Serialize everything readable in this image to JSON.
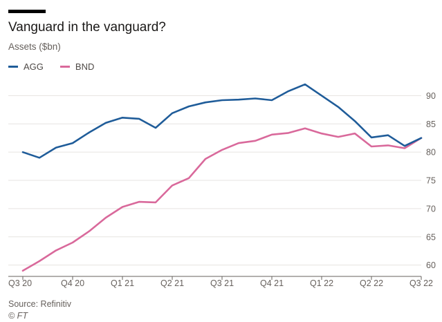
{
  "header": {
    "title": "Vanguard in the vanguard?",
    "subtitle": "Assets ($bn)"
  },
  "footer": {
    "source": "Source: Refinitiv",
    "credit": "© FT"
  },
  "colors": {
    "agg": "#1f5c99",
    "bnd": "#d9699b",
    "grid": "#e6e3e0",
    "axis": "#66605c"
  },
  "chart_data": {
    "type": "line",
    "title": "Vanguard in the vanguard?",
    "ylabel": "Assets ($bn)",
    "ylim": [
      58,
      92.5
    ],
    "yticks": [
      60,
      65,
      70,
      75,
      80,
      85,
      90
    ],
    "y_axis_side": "right",
    "grid": true,
    "legend": "top-left",
    "x_tick_labels": [
      "Q3 20",
      "Q4 20",
      "Q1 21",
      "Q2 21",
      "Q3 21",
      "Q4 21",
      "Q1 22",
      "Q2 22",
      "Q3 22"
    ],
    "points_per_quarter": 3,
    "series": [
      {
        "name": "AGG",
        "color": "#1f5c99",
        "values": [
          80.0,
          79.0,
          80.8,
          81.6,
          83.5,
          85.2,
          86.1,
          85.9,
          84.3,
          86.9,
          88.1,
          88.8,
          89.2,
          89.3,
          89.5,
          89.2,
          90.8,
          92.0,
          90.0,
          88.0,
          85.5,
          82.6,
          83.0,
          81.1,
          82.5
        ]
      },
      {
        "name": "BND",
        "color": "#d9699b",
        "values": [
          59.0,
          60.7,
          62.6,
          64.0,
          66.0,
          68.4,
          70.3,
          71.2,
          71.1,
          74.1,
          75.4,
          78.8,
          80.4,
          81.6,
          82.0,
          83.1,
          83.4,
          84.2,
          83.3,
          82.7,
          83.3,
          81.0,
          81.2,
          80.7,
          82.5
        ]
      }
    ]
  }
}
